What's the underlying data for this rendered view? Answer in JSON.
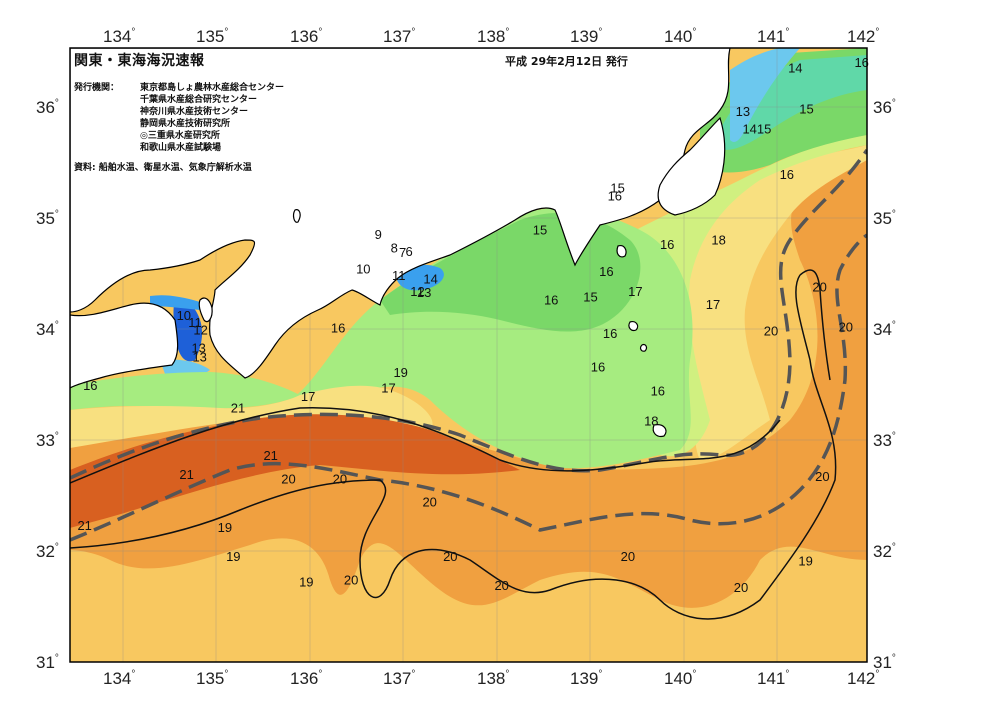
{
  "header": {
    "title": "関東・東海海況速報",
    "date": "平成 29年2月12日 発行"
  },
  "issuer_label": "発行機関：",
  "issuers": [
    "東京都島しょ農林水産総合センター",
    "千葉県水産総合研究センター",
    "神奈川県水産技術センター",
    "静岡県水産技術研究所",
    "◎三重県水産研究所",
    "和歌山県水産試験場"
  ],
  "source": "資料: 船舶水温、衛星水温、気象庁解析水温",
  "lon_ticks": [
    "134",
    "135",
    "136",
    "137",
    "138",
    "139",
    "140",
    "141",
    "142"
  ],
  "lat_ticks": [
    "36",
    "35",
    "34",
    "33",
    "32",
    "31"
  ],
  "degree_mark": "°",
  "contour_labels": [
    {
      "text": "9",
      "lon": 136.73,
      "lat": 34.84
    },
    {
      "text": "10",
      "lon": 136.57,
      "lat": 34.53
    },
    {
      "text": "8",
      "lon": 136.9,
      "lat": 34.72
    },
    {
      "text": "7",
      "lon": 136.99,
      "lat": 34.68
    },
    {
      "text": "6",
      "lon": 137.06,
      "lat": 34.69
    },
    {
      "text": "11",
      "lon": 136.95,
      "lat": 34.47
    },
    {
      "text": "12",
      "lon": 137.15,
      "lat": 34.33
    },
    {
      "text": "13",
      "lon": 137.22,
      "lat": 34.32
    },
    {
      "text": "14",
      "lon": 137.29,
      "lat": 34.44
    },
    {
      "text": "10",
      "lon": 134.65,
      "lat": 34.11
    },
    {
      "text": "11",
      "lon": 134.77,
      "lat": 34.05
    },
    {
      "text": "12",
      "lon": 134.83,
      "lat": 33.98
    },
    {
      "text": "13",
      "lon": 134.81,
      "lat": 33.82
    },
    {
      "text": "13",
      "lon": 134.82,
      "lat": 33.74
    },
    {
      "text": "16",
      "lon": 133.65,
      "lat": 33.48
    },
    {
      "text": "16",
      "lon": 136.3,
      "lat": 34.0
    },
    {
      "text": "17",
      "lon": 135.98,
      "lat": 33.38
    },
    {
      "text": "21",
      "lon": 135.23,
      "lat": 33.28
    },
    {
      "text": "19",
      "lon": 136.97,
      "lat": 33.6
    },
    {
      "text": "17",
      "lon": 136.84,
      "lat": 33.46
    },
    {
      "text": "21",
      "lon": 134.68,
      "lat": 32.68
    },
    {
      "text": "21",
      "lon": 135.58,
      "lat": 32.85
    },
    {
      "text": "20",
      "lon": 135.77,
      "lat": 32.64
    },
    {
      "text": "20",
      "lon": 136.32,
      "lat": 32.64
    },
    {
      "text": "20",
      "lon": 137.28,
      "lat": 32.43
    },
    {
      "text": "21",
      "lon": 133.59,
      "lat": 32.22
    },
    {
      "text": "19",
      "lon": 135.09,
      "lat": 32.2
    },
    {
      "text": "19",
      "lon": 135.18,
      "lat": 31.94
    },
    {
      "text": "19",
      "lon": 135.96,
      "lat": 31.71
    },
    {
      "text": "20",
      "lon": 136.44,
      "lat": 31.73
    },
    {
      "text": "20",
      "lon": 137.5,
      "lat": 31.94
    },
    {
      "text": "20",
      "lon": 138.05,
      "lat": 31.68
    },
    {
      "text": "20",
      "lon": 139.4,
      "lat": 31.94
    },
    {
      "text": "20",
      "lon": 140.61,
      "lat": 31.66
    },
    {
      "text": "19",
      "lon": 141.3,
      "lat": 31.9
    },
    {
      "text": "20",
      "lon": 141.48,
      "lat": 32.66
    },
    {
      "text": "20",
      "lon": 140.93,
      "lat": 33.97
    },
    {
      "text": "20",
      "lon": 141.45,
      "lat": 34.37
    },
    {
      "text": "20",
      "lon": 141.73,
      "lat": 34.01
    },
    {
      "text": "15",
      "lon": 138.46,
      "lat": 34.88
    },
    {
      "text": "15",
      "lon": 139.29,
      "lat": 35.26
    },
    {
      "text": "16",
      "lon": 139.26,
      "lat": 35.19
    },
    {
      "text": "16",
      "lon": 139.82,
      "lat": 34.75
    },
    {
      "text": "18",
      "lon": 140.37,
      "lat": 34.79
    },
    {
      "text": "16",
      "lon": 139.17,
      "lat": 34.51
    },
    {
      "text": "16",
      "lon": 138.58,
      "lat": 34.25
    },
    {
      "text": "15",
      "lon": 139.0,
      "lat": 34.28
    },
    {
      "text": "17",
      "lon": 139.48,
      "lat": 34.33
    },
    {
      "text": "17",
      "lon": 140.31,
      "lat": 34.21
    },
    {
      "text": "16",
      "lon": 139.21,
      "lat": 33.95
    },
    {
      "text": "16",
      "lon": 139.08,
      "lat": 33.65
    },
    {
      "text": "16",
      "lon": 139.72,
      "lat": 33.43
    },
    {
      "text": "18",
      "lon": 139.65,
      "lat": 33.16
    },
    {
      "text": "14",
      "lon": 141.19,
      "lat": 36.34
    },
    {
      "text": "16",
      "lon": 141.9,
      "lat": 36.39
    },
    {
      "text": "13",
      "lon": 140.63,
      "lat": 35.95
    },
    {
      "text": "15",
      "lon": 141.31,
      "lat": 35.97
    },
    {
      "text": "1415",
      "lon": 140.78,
      "lat": 35.79
    },
    {
      "text": "16",
      "lon": 141.1,
      "lat": 35.38
    }
  ],
  "colors": {
    "c_lt12": "#1e60d8",
    "c_12_13": "#3aa0ee",
    "c_13_14": "#6cc8ee",
    "c_14_15": "#60d8a8",
    "c_15_16": "#7ad868",
    "c_16_17": "#a6ec80",
    "c_17_18": "#d0f080",
    "c_18_19": "#f8e080",
    "c_19_20": "#f8c860",
    "c_20_21": "#f0a040",
    "c_gt21": "#d86020",
    "kuroshio_line": "#555555",
    "land": "#ffffff",
    "coast": "#000000"
  }
}
